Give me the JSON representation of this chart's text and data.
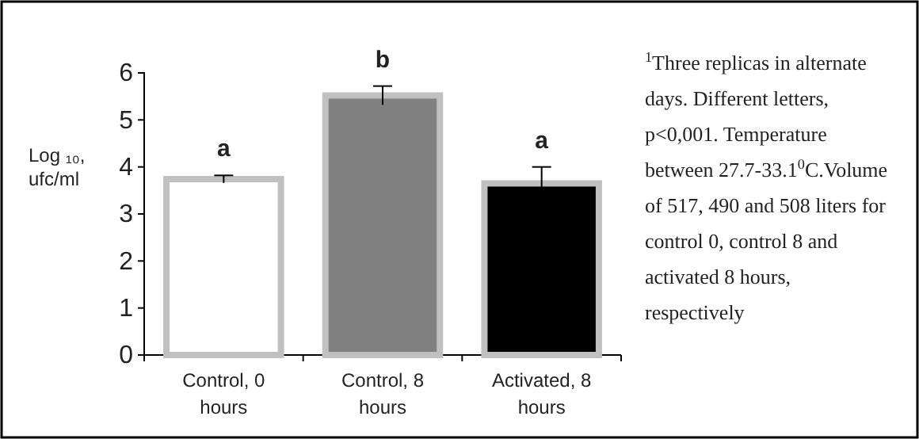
{
  "chart_data": {
    "type": "bar",
    "categories": [
      "Control, 0 hours",
      "Control, 8 hours",
      "Activated, 8 hours"
    ],
    "values": [
      3.74,
      5.52,
      3.65
    ],
    "errors": [
      0.08,
      0.2,
      0.35
    ],
    "colors": [
      "#ffffff",
      "#808080",
      "#000000"
    ],
    "ylabel": "Log ₁₀, ufc/ml",
    "ylim": [
      0,
      6
    ],
    "yticks": [
      0,
      1,
      2,
      3,
      4,
      5,
      6
    ],
    "grid": false,
    "annotations": [
      "a",
      "b",
      "a",
      "$^{1}$Three replicas in alternate days.  Different letters,  p<0,001. Temperature between 27.7-33.1$^{0}$C.Volume of 517, 490 and 508 liters for control 0, control 8 and activated 8 hours, respectively"
    ]
  }
}
